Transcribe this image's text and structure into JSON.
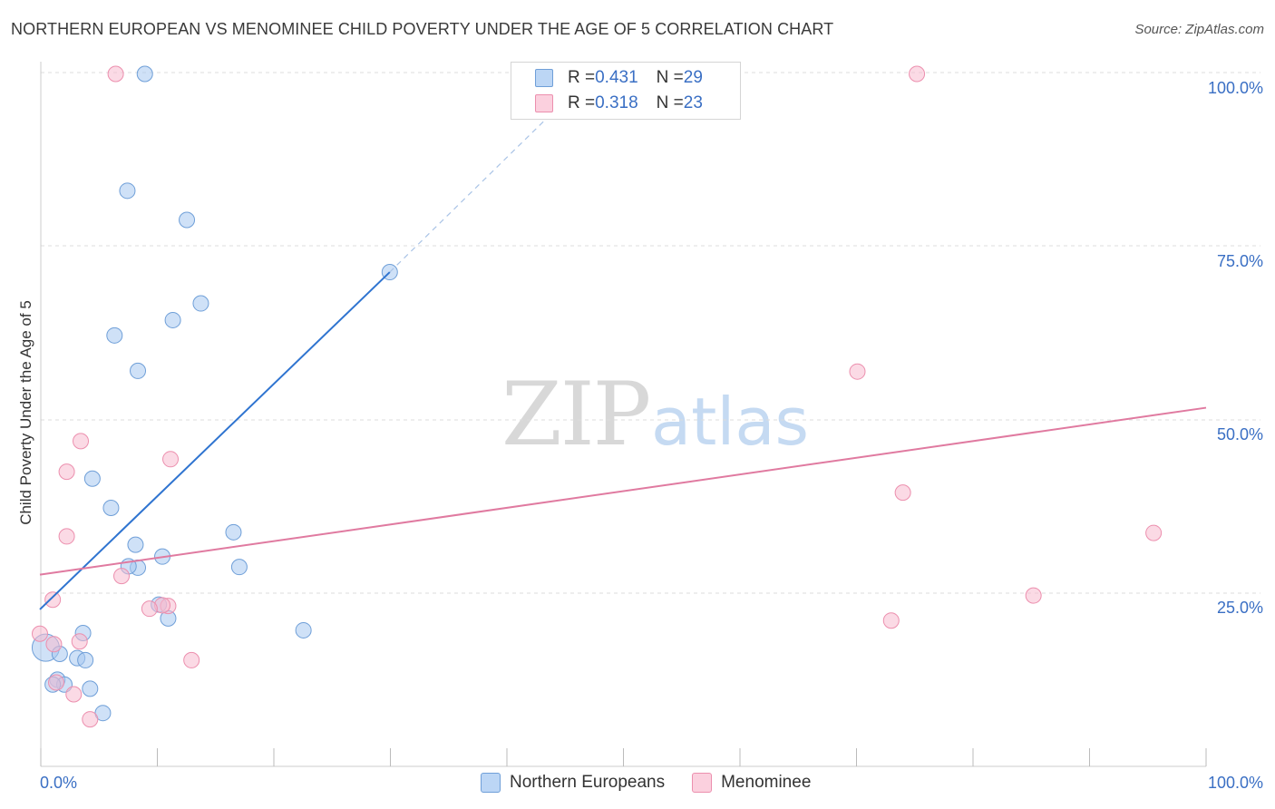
{
  "title": "NORTHERN EUROPEAN VS MENOMINEE CHILD POVERTY UNDER THE AGE OF 5 CORRELATION CHART",
  "source": "Source: ZipAtlas.com",
  "watermark": {
    "zip": "ZIP",
    "atlas": "atlas"
  },
  "legend_stats": [
    {
      "r_label": "R = ",
      "r_value": "0.431",
      "n_label": "N = ",
      "n_value": "29"
    },
    {
      "r_label": "R = ",
      "r_value": "0.318",
      "n_label": "N = ",
      "n_value": "23"
    }
  ],
  "chart_data": {
    "type": "scatter",
    "title": "NORTHERN EUROPEAN VS MENOMINEE CHILD POVERTY UNDER THE AGE OF 5 CORRELATION CHART",
    "xlabel": "",
    "ylabel": "Child Poverty Under the Age of 5",
    "xlim": [
      0,
      100
    ],
    "ylim": [
      5,
      103.5
    ],
    "x_tick_labels": [
      "0.0%",
      "100.0%"
    ],
    "y_ticks": [
      25,
      50,
      75,
      100
    ],
    "y_tick_labels": [
      "25.0%",
      "50.0%",
      "75.0%",
      "100.0%"
    ],
    "grid": true,
    "legend_position": "top-center and bottom",
    "series": [
      {
        "name": "Northern Europeans",
        "color": "#a8c8f0",
        "edge": "#6f9fd8",
        "trend_color": "#2f74d0",
        "x": [
          9.0,
          7.5,
          13.8,
          11.4,
          12.6,
          8.4,
          6.4,
          30.0,
          4.5,
          6.1,
          8.2,
          10.2,
          16.6,
          17.1,
          22.6,
          8.4,
          11.0,
          3.7,
          3.2,
          1.5,
          2.1,
          3.9,
          0.5,
          1.1,
          1.7,
          4.3,
          5.4,
          10.5,
          7.6
        ],
        "y": [
          100.0,
          83.2,
          67.0,
          64.6,
          79.0,
          57.3,
          62.4,
          71.5,
          41.8,
          37.6,
          32.3,
          23.7,
          34.1,
          29.1,
          20.0,
          29.0,
          21.7,
          19.6,
          16.0,
          12.9,
          12.2,
          15.7,
          17.5,
          12.2,
          16.6,
          11.6,
          8.1,
          30.6,
          29.2
        ],
        "trend": {
          "x0": 0,
          "y0": 23.0,
          "x1": 30.0,
          "y1": 71.5,
          "dash_to": {
            "x": 44.0,
            "y": 94.5
          }
        }
      },
      {
        "name": "Menominee",
        "color": "#f8bcd0",
        "edge": "#ec8fae",
        "trend_color": "#e07aa0",
        "x": [
          6.5,
          75.2,
          3.5,
          2.3,
          11.2,
          70.1,
          74.0,
          2.3,
          1.1,
          85.2,
          0.0,
          11.0,
          10.5,
          13.0,
          7.0,
          1.2,
          2.9,
          3.4,
          4.3,
          95.5,
          9.4,
          73.0,
          1.4
        ],
        "y": [
          100.0,
          100.0,
          47.2,
          42.8,
          44.6,
          57.2,
          39.8,
          33.5,
          24.4,
          25.0,
          19.5,
          23.5,
          23.6,
          15.7,
          27.8,
          18.0,
          10.8,
          18.4,
          7.2,
          34.0,
          23.1,
          21.4,
          12.5
        ],
        "trend": {
          "x0": 0,
          "y0": 28.0,
          "x1": 100.0,
          "y1": 52.0
        }
      }
    ]
  }
}
